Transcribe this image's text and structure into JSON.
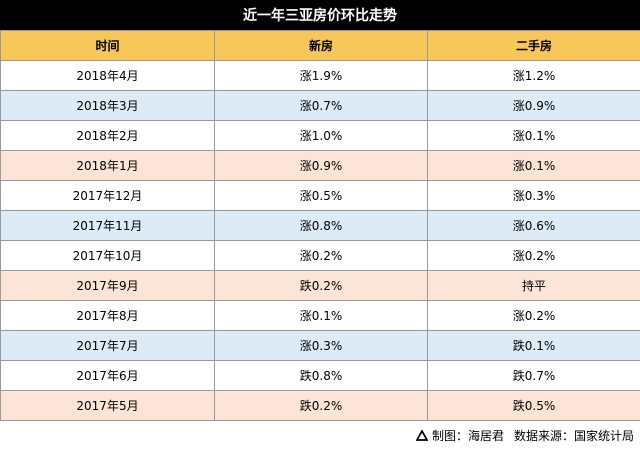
{
  "title": "近一年三亚房价环比走势",
  "headers": [
    "时间",
    "新房",
    "二手房"
  ],
  "rows": [
    {
      "time": "2018年4月",
      "new": "涨1.9%",
      "resale": "涨1.2%"
    },
    {
      "time": "2018年3月",
      "new": "涨0.7%",
      "resale": "涨0.9%"
    },
    {
      "time": "2018年2月",
      "new": "涨1.0%",
      "resale": "涨0.1%"
    },
    {
      "time": "2018年1月",
      "new": "涨0.9%",
      "resale": "涨0.1%"
    },
    {
      "time": "2017年12月",
      "new": "涨0.5%",
      "resale": "涨0.3%"
    },
    {
      "time": "2017年11月",
      "new": "涨0.8%",
      "resale": "涨0.6%"
    },
    {
      "time": "2017年10月",
      "new": "涨0.2%",
      "resale": "涨0.2%"
    },
    {
      "time": "2017年9月",
      "new": "跌0.2%",
      "resale": "持平"
    },
    {
      "time": "2017年8月",
      "new": "涨0.1%",
      "resale": "涨0.2%"
    },
    {
      "time": "2017年7月",
      "new": "涨0.3%",
      "resale": "跌0.1%"
    },
    {
      "time": "2017年6月",
      "new": "跌0.8%",
      "resale": "跌0.7%"
    },
    {
      "time": "2017年5月",
      "new": "跌0.2%",
      "resale": "跌0.5%"
    }
  ],
  "footer": {
    "icon": "triangle-logo-icon",
    "maker": "制图：海居君",
    "source": "数据来源：国家统计局"
  },
  "colors": {
    "header_bg": "#f7c75a",
    "title_bg": "#000000",
    "row_blue": "#ddebf7",
    "row_peach": "#fce4d6",
    "row_white": "#ffffff"
  }
}
